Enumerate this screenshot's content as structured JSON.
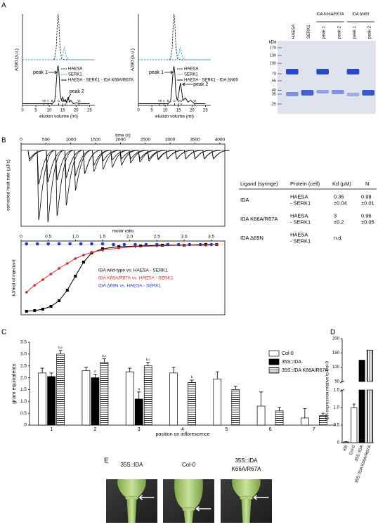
{
  "panel_labels": [
    "A",
    "B",
    "C",
    "D",
    "E"
  ],
  "panel_a": {
    "charts": [
      {
        "type": "line",
        "ylabel": "A280 (a.u.)",
        "xlabel": "elution volume (ml)",
        "xlim": [
          0,
          27
        ],
        "ylim": [
          0,
          110
        ],
        "xticks": [
          0,
          5,
          10,
          15,
          20,
          25
        ],
        "annotations": [
          "peak 1",
          "peak 2"
        ],
        "markers": [
          {
            "label": "V0",
            "x": 8
          },
          {
            "label": "A",
            "x": 9.5
          },
          {
            "label": "B",
            "x": 11
          },
          {
            "label": "C",
            "x": 13.5
          },
          {
            "label": "D",
            "x": 15
          },
          {
            "label": "E",
            "x": 16
          },
          {
            "label": "Vt",
            "x": 21
          }
        ],
        "series": [
          {
            "name": "HAESA",
            "color": "#222222",
            "style": "dashed",
            "x": [
              0,
              8,
              11,
              12,
              12.6,
              13,
              13.3,
              13.6,
              14,
              14.6,
              16,
              27
            ],
            "y": [
              55,
              55,
              55,
              56,
              70,
              98,
              110,
              98,
              70,
              56,
              55,
              55
            ]
          },
          {
            "name": "SERK1",
            "color": "#2aa3d6",
            "style": "dashed",
            "x": [
              0,
              10,
              14,
              14.8,
              15.3,
              15.6,
              15.9,
              16.4,
              17.5,
              27
            ],
            "y": [
              55,
              55,
              55,
              58,
              66,
              70,
              66,
              58,
              55,
              55
            ]
          },
          {
            "name": "HAESA - SERK1 - IDA K66A/R67A",
            "color": "#000000",
            "style": "solid",
            "x": [
              0,
              5,
              9,
              11,
              12,
              12.5,
              13,
              13.3,
              13.6,
              14,
              14.5,
              15,
              15.5,
              16,
              16.5,
              17,
              17.5,
              18,
              19,
              20,
              22,
              25
            ],
            "y": [
              2,
              2,
              2,
              2,
              5,
              22,
              44,
              48,
              40,
              15,
              6,
              10,
              5,
              7,
              3,
              10,
              4,
              6,
              2,
              3,
              2,
              2
            ]
          }
        ]
      },
      {
        "type": "line",
        "ylabel": "A280 (a.u.)",
        "xlabel": "elution volume (ml)",
        "xlim": [
          0,
          27
        ],
        "ylim": [
          0,
          110
        ],
        "xticks": [
          0,
          5,
          10,
          15,
          20,
          25
        ],
        "annotations": [
          "peak 1",
          "peak 2"
        ],
        "markers": [
          {
            "label": "V0",
            "x": 8
          },
          {
            "label": "A",
            "x": 9.5
          },
          {
            "label": "B",
            "x": 11
          },
          {
            "label": "C",
            "x": 13.5
          },
          {
            "label": "D",
            "x": 15
          },
          {
            "label": "E",
            "x": 16
          },
          {
            "label": "Vt",
            "x": 21
          }
        ],
        "series": [
          {
            "name": "HAESA",
            "color": "#222222",
            "style": "dashed",
            "x": [
              0,
              8,
              11,
              12,
              12.6,
              13,
              13.3,
              13.6,
              14,
              14.6,
              16,
              27
            ],
            "y": [
              55,
              55,
              55,
              56,
              70,
              98,
              110,
              98,
              70,
              56,
              55,
              55
            ]
          },
          {
            "name": "SERK1",
            "color": "#2aa3d6",
            "style": "dashed",
            "x": [
              0,
              10,
              14,
              14.8,
              15.3,
              15.6,
              15.9,
              16.4,
              17.5,
              27
            ],
            "y": [
              55,
              55,
              55,
              58,
              66,
              70,
              66,
              58,
              55,
              55
            ]
          },
          {
            "name": "HAESA - SERK1 - IDA ΔN69",
            "color": "#000000",
            "style": "solid",
            "x": [
              0,
              5,
              9,
              11,
              12,
              12.5,
              13,
              13.3,
              13.6,
              14,
              14.5,
              15,
              15.4,
              15.7,
              16.1,
              16.6,
              17.5,
              18.5,
              19.5,
              21,
              25
            ],
            "y": [
              2,
              2,
              2,
              2,
              5,
              22,
              44,
              47,
              38,
              14,
              6,
              12,
              22,
              27,
              18,
              6,
              9,
              4,
              6,
              2,
              2
            ]
          }
        ]
      }
    ],
    "gel": {
      "unit": "kDa",
      "markers": [
        {
          "value": 170,
          "label": "170"
        },
        {
          "value": 130,
          "label": "130"
        },
        {
          "value": 100,
          "label": "100"
        },
        {
          "value": 70,
          "label": "70"
        },
        {
          "value": 55,
          "label": "55"
        },
        {
          "value": 40,
          "label": "40"
        },
        {
          "value": 35,
          "label": "35"
        },
        {
          "value": 25,
          "label": "25"
        }
      ],
      "lanes": [
        "HAESA",
        "SERK1",
        "peak 1",
        "peak 2",
        "peak 1",
        "peak 2"
      ],
      "groups": [
        {
          "label": "IDA K66A/R67A",
          "lanes": [
            2,
            3
          ]
        },
        {
          "label": "IDA ΔN69",
          "lanes": [
            4,
            5
          ]
        }
      ]
    }
  },
  "panel_b": {
    "thermogram": {
      "type": "line",
      "xlabel": "time (s)",
      "ylabel": "corrected heat rate (µJ/s)",
      "xlim": [
        0,
        4100
      ],
      "ylim": [
        -3.6,
        0.3
      ],
      "xticks": [
        0,
        500,
        1000,
        1500,
        2000,
        2500,
        3000,
        3500,
        4000
      ],
      "series": [
        {
          "color": "#000000",
          "x": [
            140,
            325,
            510,
            695,
            880,
            1065,
            1250,
            1435,
            1620,
            1805,
            1990,
            2175,
            2360,
            2545,
            2730,
            2915,
            3100,
            3285,
            3470,
            3655,
            3840
          ],
          "values": [
            -0.5,
            -3.3,
            -3.4,
            -3.1,
            -2.6,
            -1.9,
            -1.1,
            -0.7,
            -0.5,
            -0.45,
            -0.4,
            -0.4,
            -0.4,
            -0.4,
            -0.4,
            -0.4,
            -0.4,
            -0.4,
            -0.4,
            -0.4,
            -0.4
          ]
        },
        {
          "color": "#000000",
          "x": [
            140,
            325,
            510,
            695,
            880,
            1065,
            1250,
            1435,
            1620,
            1805,
            1990,
            2175,
            2360,
            2545,
            2730,
            2915,
            3100,
            3285,
            3470,
            3655,
            3840
          ],
          "values": [
            -0.4,
            -1.6,
            -1.5,
            -1.4,
            -1.3,
            -1.2,
            -1.1,
            -1.0,
            -0.9,
            -0.8,
            -0.7,
            -0.6,
            -0.55,
            -0.5,
            -0.45,
            -0.4,
            -0.4,
            -0.4,
            -0.4,
            -0.4,
            -0.4
          ]
        }
      ]
    },
    "isotherm": {
      "type": "scatter",
      "xlabel": "molar ratio",
      "ylabel": "kJ/mol of injectant",
      "xlim": [
        0,
        3.75
      ],
      "ylim": [
        -100,
        5
      ],
      "xticks": [
        0,
        0.5,
        {
          "value": 1,
          "label": "1.0"
        },
        1.5,
        {
          "value": 2,
          "label": "2.0"
        },
        2.5,
        {
          "value": 3,
          "label": "3.0"
        },
        3.5
      ],
      "series": [
        {
          "name": "IDA wild-type vs. HAESA - SERK1",
          "color": "#000000",
          "marker": "square",
          "line": true,
          "x": [
            0.1,
            0.25,
            0.4,
            0.55,
            0.7,
            0.85,
            1.0,
            1.15,
            1.3,
            1.5,
            1.8,
            2.2,
            2.6,
            3.0,
            3.4,
            3.6
          ],
          "y": [
            -95,
            -94,
            -92,
            -88,
            -80,
            -65,
            -45,
            -25,
            -12,
            -6,
            -3,
            -2,
            -1,
            -1,
            0,
            0
          ]
        },
        {
          "name": "IDA K66A/R67A vs. HAESA - SERK1",
          "color": "#d62728",
          "marker": "diamond",
          "line": true,
          "x": [
            0.1,
            0.25,
            0.4,
            0.55,
            0.7,
            0.85,
            1.0,
            1.15,
            1.3,
            1.5,
            1.8,
            2.1,
            2.5,
            3.0,
            3.4,
            3.6
          ],
          "y": [
            -68,
            -58,
            -50,
            -42,
            -34,
            -27,
            -20,
            -15,
            -11,
            -8,
            -5,
            -3,
            -2,
            -1,
            -1,
            0
          ]
        },
        {
          "name": "IDA Δ69N vs. HAESA - SERK1",
          "color": "#2438c2",
          "marker": "circle",
          "line": false,
          "x": [
            0.1,
            0.3,
            0.5,
            0.7,
            0.9,
            1.1,
            1.3,
            1.5,
            1.7,
            1.9,
            2.1,
            2.3,
            2.5,
            2.7,
            2.9,
            3.1,
            3.3,
            3.5
          ],
          "y": [
            1,
            1,
            1,
            1,
            1,
            1,
            1,
            1,
            0,
            0,
            0,
            0,
            0,
            0,
            0,
            0,
            0,
            0
          ]
        }
      ]
    },
    "table": {
      "headers": [
        "Ligand (syringe)",
        "Protein (cell)",
        "Kd (µM)",
        "N"
      ],
      "rows": [
        [
          "IDA",
          [
            "HAESA",
            "- SERK1"
          ],
          [
            "0.35",
            "±0.04"
          ],
          [
            "0.98",
            "±0.01"
          ]
        ],
        [
          "IDA K66A/R67A",
          [
            "HAESA",
            "- SERK1"
          ],
          [
            "3",
            "±0.2"
          ],
          [
            "0.96",
            "±0.05"
          ]
        ],
        [
          "IDA Δ69N",
          [
            "HAESA",
            "- SERK1"
          ],
          [
            "n.d."
          ]
        ]
      ]
    }
  },
  "panel_c": {
    "type": "bar",
    "ylabel": "gram equivalents",
    "xlabel": "position on inflorescence",
    "categories": [
      "1",
      "2",
      "3",
      "4",
      "5",
      "6",
      "7"
    ],
    "ylim": [
      0,
      3.5
    ],
    "yticks": [
      0,
      0.5,
      {
        "value": 1,
        "label": "1.0"
      },
      1.5,
      {
        "value": 2,
        "label": "2.0"
      },
      2.5,
      {
        "value": 3,
        "label": "3.0"
      },
      3.5
    ],
    "series": [
      {
        "name": "Col-0",
        "color": "#ffffff",
        "values": [
          2.2,
          2.3,
          2.25,
          2.2,
          1.95,
          0.8,
          0.3
        ],
        "errors": [
          0.2,
          0.15,
          0.15,
          0.25,
          0.3,
          0.6,
          0.4
        ],
        "letters": [
          null,
          null,
          null,
          null,
          null,
          null,
          null
        ]
      },
      {
        "name": "35S::IDA",
        "color": "#000000",
        "values": [
          2.05,
          2.0,
          1.1,
          null,
          null,
          null,
          null
        ],
        "errors": [
          0.15,
          0.15,
          0.3,
          null,
          null,
          null,
          null
        ],
        "letters": [
          null,
          "a",
          "a",
          null,
          null,
          null,
          null
        ]
      },
      {
        "name": "35S::IDA  K66A/R67A",
        "color": "#ffffff",
        "pattern": "horizontal-stripes",
        "values": [
          3.0,
          2.65,
          2.5,
          1.8,
          1.5,
          0.6,
          0.4
        ],
        "errors": [
          0.15,
          0.15,
          0.15,
          0.1,
          0.15,
          0.15,
          0.1
        ],
        "letters": [
          "b,c",
          "b,c",
          "b,c",
          "b",
          null,
          null,
          null
        ]
      }
    ]
  },
  "panel_d": {
    "type": "bar",
    "ylabel": "IDA expression relative to Col-0",
    "categories": [
      "ida",
      "Col-0",
      "35S::IDA",
      "35S::IDA  K66A/R67A"
    ],
    "ylim_lower": [
      0,
      1.5
    ],
    "yticks_lower": [
      0,
      0.5,
      {
        "value": 1,
        "label": "1.0"
      },
      1.5
    ],
    "ylim_upper": [
      50,
      200
    ],
    "yticks_upper": [
      50,
      100,
      150,
      200
    ],
    "values": [
      0.02,
      1.0,
      125,
      160
    ],
    "errors": [
      0.01,
      0.1,
      null,
      null
    ],
    "colors": [
      "#ffffff",
      "#ffffff",
      "#000000",
      "#ffffff"
    ],
    "patterns": [
      null,
      null,
      null,
      "vertical-stripes"
    ]
  },
  "panel_e": {
    "photos": [
      [
        "35S::IDA"
      ],
      [
        "Col-0"
      ],
      [
        "35S::IDA",
        "K66A/R67A"
      ]
    ]
  }
}
